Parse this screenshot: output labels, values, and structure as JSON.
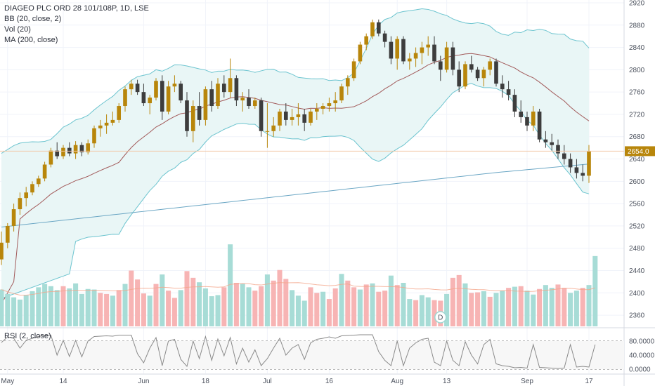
{
  "legend": {
    "title": "DIAGEO PLC ORD 28 101/108P, 1D, LSE",
    "bb": "BB (20, close, 2)",
    "vol": "Vol (20)",
    "ma": "MA (200, close)"
  },
  "rsi_panel": {
    "label": "RSI (2, close)"
  },
  "last_price_label": "2654.0",
  "dividend_marker": "D",
  "colors": {
    "up": "#b8860b",
    "down": "#3d3d3d",
    "vol_up": "#a7dcd6",
    "vol_down": "#f7b4b4",
    "bb_line": "#6cc4cf",
    "bb_fill": "#e9f6f6",
    "bb_mid": "#a25a5a",
    "ma200": "#6aa6c4",
    "last_price": "#b8860b",
    "price_line": "#f2c9a8",
    "rsi_line": "#8a8a8a"
  },
  "chart_data": {
    "type": "candlestick",
    "price_axis": {
      "ylim": [
        2340,
        2925
      ],
      "ticks": [
        2360,
        2400,
        2440,
        2480,
        2520,
        2560,
        2600,
        2640,
        2680,
        2720,
        2760,
        2800,
        2840,
        2880,
        2920
      ]
    },
    "time_axis": {
      "labels": [
        "May",
        "14",
        "Jun",
        "18",
        "Jul",
        "16",
        "Aug",
        "13",
        "Sep",
        "17"
      ],
      "label_bars": [
        1,
        10,
        23,
        33,
        43,
        53,
        64,
        72,
        85,
        95
      ]
    },
    "rsi_axis": {
      "ylim": [
        0,
        100
      ],
      "ticks": [
        "0.0000",
        "40.0000",
        "80.0000"
      ]
    },
    "candles": [
      [
        2460,
        2510,
        2450,
        2490
      ],
      [
        2490,
        2525,
        2480,
        2520
      ],
      [
        2520,
        2560,
        2510,
        2550
      ],
      [
        2550,
        2580,
        2540,
        2570
      ],
      [
        2570,
        2590,
        2555,
        2580
      ],
      [
        2580,
        2600,
        2575,
        2595
      ],
      [
        2595,
        2610,
        2590,
        2605
      ],
      [
        2605,
        2635,
        2600,
        2630
      ],
      [
        2630,
        2660,
        2625,
        2655
      ],
      [
        2655,
        2670,
        2640,
        2645
      ],
      [
        2645,
        2665,
        2640,
        2660
      ],
      [
        2660,
        2670,
        2645,
        2650
      ],
      [
        2650,
        2672,
        2640,
        2665
      ],
      [
        2665,
        2670,
        2645,
        2652
      ],
      [
        2652,
        2675,
        2648,
        2668
      ],
      [
        2668,
        2700,
        2660,
        2695
      ],
      [
        2695,
        2710,
        2680,
        2700
      ],
      [
        2700,
        2720,
        2685,
        2705
      ],
      [
        2705,
        2725,
        2700,
        2710
      ],
      [
        2710,
        2740,
        2705,
        2735
      ],
      [
        2735,
        2770,
        2725,
        2765
      ],
      [
        2765,
        2782,
        2755,
        2775
      ],
      [
        2775,
        2782,
        2755,
        2760
      ],
      [
        2760,
        2775,
        2735,
        2740
      ],
      [
        2740,
        2755,
        2720,
        2750
      ],
      [
        2750,
        2785,
        2745,
        2780
      ],
      [
        2780,
        2790,
        2710,
        2725
      ],
      [
        2725,
        2780,
        2720,
        2770
      ],
      [
        2770,
        2790,
        2760,
        2775
      ],
      [
        2775,
        2780,
        2740,
        2745
      ],
      [
        2745,
        2760,
        2680,
        2690
      ],
      [
        2690,
        2745,
        2670,
        2735
      ],
      [
        2735,
        2760,
        2700,
        2710
      ],
      [
        2710,
        2770,
        2700,
        2765
      ],
      [
        2765,
        2780,
        2725,
        2735
      ],
      [
        2735,
        2785,
        2730,
        2775
      ],
      [
        2775,
        2790,
        2750,
        2760
      ],
      [
        2760,
        2820,
        2750,
        2785
      ],
      [
        2785,
        2790,
        2735,
        2745
      ],
      [
        2745,
        2760,
        2725,
        2750
      ],
      [
        2750,
        2765,
        2730,
        2735
      ],
      [
        2735,
        2750,
        2730,
        2745
      ],
      [
        2745,
        2750,
        2680,
        2690
      ],
      [
        2690,
        2740,
        2660,
        2690
      ],
      [
        2690,
        2715,
        2680,
        2700
      ],
      [
        2700,
        2730,
        2690,
        2725
      ],
      [
        2725,
        2740,
        2700,
        2710
      ],
      [
        2710,
        2730,
        2700,
        2715
      ],
      [
        2715,
        2740,
        2700,
        2720
      ],
      [
        2720,
        2730,
        2690,
        2705
      ],
      [
        2705,
        2730,
        2700,
        2725
      ],
      [
        2725,
        2740,
        2710,
        2730
      ],
      [
        2730,
        2740,
        2720,
        2735
      ],
      [
        2735,
        2750,
        2725,
        2740
      ],
      [
        2740,
        2760,
        2725,
        2745
      ],
      [
        2745,
        2775,
        2740,
        2770
      ],
      [
        2770,
        2790,
        2755,
        2785
      ],
      [
        2785,
        2820,
        2780,
        2815
      ],
      [
        2815,
        2850,
        2810,
        2845
      ],
      [
        2845,
        2865,
        2835,
        2860
      ],
      [
        2860,
        2890,
        2855,
        2885
      ],
      [
        2885,
        2890,
        2860,
        2865
      ],
      [
        2865,
        2870,
        2840,
        2850
      ],
      [
        2850,
        2860,
        2810,
        2820
      ],
      [
        2820,
        2860,
        2800,
        2855
      ],
      [
        2855,
        2860,
        2810,
        2815
      ],
      [
        2815,
        2830,
        2800,
        2820
      ],
      [
        2820,
        2840,
        2805,
        2830
      ],
      [
        2830,
        2850,
        2810,
        2840
      ],
      [
        2840,
        2860,
        2825,
        2845
      ],
      [
        2845,
        2860,
        2810,
        2815
      ],
      [
        2815,
        2825,
        2780,
        2800
      ],
      [
        2800,
        2850,
        2795,
        2840
      ],
      [
        2840,
        2850,
        2790,
        2800
      ],
      [
        2800,
        2815,
        2760,
        2770
      ],
      [
        2770,
        2815,
        2765,
        2810
      ],
      [
        2810,
        2825,
        2795,
        2800
      ],
      [
        2800,
        2805,
        2780,
        2785
      ],
      [
        2785,
        2805,
        2770,
        2800
      ],
      [
        2800,
        2820,
        2790,
        2815
      ],
      [
        2815,
        2820,
        2770,
        2775
      ],
      [
        2775,
        2790,
        2750,
        2765
      ],
      [
        2765,
        2780,
        2745,
        2755
      ],
      [
        2755,
        2765,
        2715,
        2725
      ],
      [
        2725,
        2745,
        2705,
        2715
      ],
      [
        2715,
        2725,
        2690,
        2700
      ],
      [
        2700,
        2735,
        2690,
        2725
      ],
      [
        2725,
        2730,
        2670,
        2675
      ],
      [
        2675,
        2690,
        2660,
        2670
      ],
      [
        2670,
        2685,
        2655,
        2665
      ],
      [
        2665,
        2675,
        2640,
        2650
      ],
      [
        2650,
        2665,
        2630,
        2640
      ],
      [
        2640,
        2650,
        2615,
        2625
      ],
      [
        2625,
        2640,
        2605,
        2615
      ],
      [
        2615,
        2630,
        2600,
        2610
      ],
      [
        2610,
        2665,
        2597,
        2654
      ]
    ],
    "volume": [
      [
        "u",
        2406
      ],
      [
        "u",
        2398
      ],
      [
        "u",
        2392
      ],
      [
        "u",
        2388
      ],
      [
        "u",
        2396
      ],
      [
        "u",
        2403
      ],
      [
        "u",
        2410
      ],
      [
        "u",
        2416
      ],
      [
        "u",
        2412
      ],
      [
        "u",
        2405
      ],
      [
        "d",
        2412
      ],
      [
        "u",
        2408
      ],
      [
        "u",
        2417
      ],
      [
        "u",
        2398
      ],
      [
        "u",
        2407
      ],
      [
        "u",
        2406
      ],
      [
        "d",
        2400
      ],
      [
        "d",
        2398
      ],
      [
        "u",
        2395
      ],
      [
        "d",
        2405
      ],
      [
        "u",
        2416
      ],
      [
        "d",
        2440
      ],
      [
        "d",
        2424
      ],
      [
        "d",
        2399
      ],
      [
        "u",
        2395
      ],
      [
        "d",
        2416
      ],
      [
        "u",
        2433
      ],
      [
        "d",
        2404
      ],
      [
        "d",
        2391
      ],
      [
        "u",
        2405
      ],
      [
        "d",
        2439
      ],
      [
        "d",
        2427
      ],
      [
        "u",
        2419
      ],
      [
        "u",
        2408
      ],
      [
        "u",
        2394
      ],
      [
        "u",
        2396
      ],
      [
        "d",
        2410
      ],
      [
        "u",
        2487
      ],
      [
        "d",
        2418
      ],
      [
        "u",
        2416
      ],
      [
        "u",
        2410
      ],
      [
        "d",
        2404
      ],
      [
        "d",
        2412
      ],
      [
        "u",
        2433
      ],
      [
        "d",
        2422
      ],
      [
        "d",
        2441
      ],
      [
        "d",
        2425
      ],
      [
        "u",
        2405
      ],
      [
        "u",
        2395
      ],
      [
        "u",
        2386
      ],
      [
        "d",
        2410
      ],
      [
        "d",
        2400
      ],
      [
        "u",
        2402
      ],
      [
        "d",
        2389
      ],
      [
        "d",
        2408
      ],
      [
        "u",
        2434
      ],
      [
        "d",
        2422
      ],
      [
        "d",
        2410
      ],
      [
        "u",
        2406
      ],
      [
        "d",
        2415
      ],
      [
        "u",
        2417
      ],
      [
        "d",
        2402
      ],
      [
        "d",
        2404
      ],
      [
        "u",
        2431
      ],
      [
        "d",
        2414
      ],
      [
        "u",
        2418
      ],
      [
        "u",
        2389
      ],
      [
        "d",
        2387
      ],
      [
        "u",
        2396
      ],
      [
        "u",
        2392
      ],
      [
        "d",
        2387
      ],
      [
        "d",
        2386
      ],
      [
        "u",
        2398
      ],
      [
        "d",
        2427
      ],
      [
        "d",
        2432
      ],
      [
        "u",
        2417
      ],
      [
        "d",
        2400
      ],
      [
        "d",
        2401
      ],
      [
        "u",
        2403
      ],
      [
        "d",
        2393
      ],
      [
        "u",
        2400
      ],
      [
        "u",
        2404
      ],
      [
        "d",
        2409
      ],
      [
        "u",
        2411
      ],
      [
        "d",
        2412
      ],
      [
        "u",
        2404
      ],
      [
        "u",
        2397
      ],
      [
        "d",
        2407
      ],
      [
        "u",
        2414
      ],
      [
        "u",
        2409
      ],
      [
        "d",
        2415
      ],
      [
        "d",
        2409
      ],
      [
        "u",
        2400
      ],
      [
        "u",
        2404
      ],
      [
        "d",
        2409
      ],
      [
        "u",
        2414
      ],
      [
        "u",
        2466
      ]
    ],
    "rsi": [
      76,
      92,
      88,
      60,
      82,
      88,
      93,
      96,
      97,
      40,
      82,
      36,
      82,
      35,
      80,
      93,
      94,
      95,
      94,
      97,
      97,
      97,
      44,
      18,
      60,
      90,
      10,
      80,
      85,
      28,
      8,
      80,
      30,
      93,
      25,
      86,
      38,
      90,
      15,
      60,
      20,
      55,
      10,
      30,
      60,
      88,
      40,
      60,
      70,
      28,
      75,
      85,
      88,
      92,
      88,
      95,
      96,
      97,
      98,
      98,
      98,
      50,
      25,
      10,
      80,
      10,
      60,
      75,
      85,
      88,
      20,
      10,
      80,
      25,
      10,
      78,
      40,
      15,
      70,
      85,
      15,
      10,
      8,
      4,
      5,
      3,
      70,
      5,
      4,
      3,
      2,
      3,
      70,
      6,
      8,
      6,
      70
    ]
  }
}
